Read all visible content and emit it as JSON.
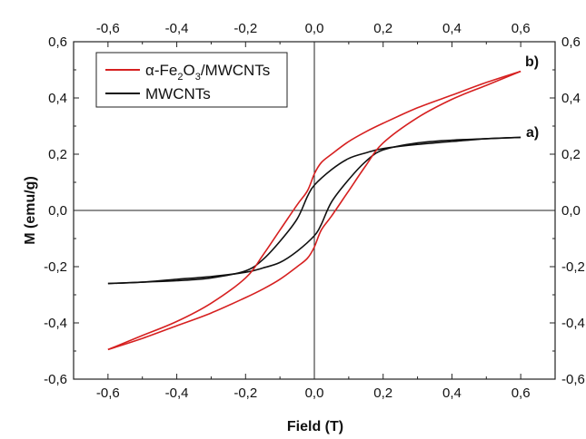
{
  "chart_data": {
    "type": "line",
    "xlabel": "Field (T)",
    "ylabel": "M (emu/g)",
    "xlim": [
      -0.7,
      0.7
    ],
    "ylim": [
      -0.6,
      0.6
    ],
    "x_ticks": [
      -0.6,
      -0.4,
      -0.2,
      0.0,
      0.2,
      0.4,
      0.6
    ],
    "y_ticks": [
      -0.6,
      -0.4,
      -0.2,
      0.0,
      0.2,
      0.4,
      0.6
    ],
    "x_tick_labels": [
      "-0,6",
      "-0,4",
      "-0,2",
      "0,0",
      "0,2",
      "0,4",
      "0,6"
    ],
    "y_tick_labels": [
      "-0,6",
      "-0,4",
      "-0,2",
      "0,0",
      "0,2",
      "0,4",
      "0,6"
    ],
    "ticks_on_all_sides": true,
    "zero_lines": true,
    "grid": false,
    "legend_position": "top-left",
    "series": [
      {
        "name": "α-Fe2O3/MWCNTs",
        "legend_parts": {
          "pre": "α-Fe",
          "sub1": "2",
          "mid": "O",
          "sub2": "3",
          "post": "/MWCNTs"
        },
        "color": "#d62020",
        "curve_label": "b)",
        "branch_descending": {
          "x": [
            0.6,
            0.5,
            0.4,
            0.3,
            0.2,
            0.15,
            0.1,
            0.05,
            0.02,
            0.0,
            -0.02,
            -0.05,
            -0.1,
            -0.15,
            -0.2,
            -0.3,
            -0.4,
            -0.5,
            -0.6
          ],
          "y": [
            0.495,
            0.455,
            0.41,
            0.365,
            0.31,
            0.28,
            0.245,
            0.2,
            0.17,
            0.13,
            0.07,
            0.02,
            -0.07,
            -0.16,
            -0.24,
            -0.33,
            -0.395,
            -0.445,
            -0.495
          ]
        },
        "branch_ascending": {
          "x": [
            -0.6,
            -0.5,
            -0.4,
            -0.3,
            -0.2,
            -0.15,
            -0.1,
            -0.05,
            -0.02,
            0.0,
            0.02,
            0.05,
            0.1,
            0.15,
            0.2,
            0.3,
            0.4,
            0.5,
            0.6
          ],
          "y": [
            -0.495,
            -0.455,
            -0.41,
            -0.365,
            -0.31,
            -0.28,
            -0.245,
            -0.2,
            -0.17,
            -0.13,
            -0.07,
            -0.02,
            0.07,
            0.16,
            0.24,
            0.33,
            0.395,
            0.445,
            0.495
          ]
        }
      },
      {
        "name": "MWCNTs",
        "color": "#111111",
        "curve_label": "a)",
        "branch_descending": {
          "x": [
            0.6,
            0.5,
            0.4,
            0.3,
            0.2,
            0.15,
            0.1,
            0.05,
            0.0,
            -0.02,
            -0.05,
            -0.1,
            -0.15,
            -0.2,
            -0.3,
            -0.4,
            -0.5,
            -0.6
          ],
          "y": [
            0.26,
            0.255,
            0.245,
            0.235,
            0.22,
            0.205,
            0.185,
            0.145,
            0.09,
            0.05,
            -0.03,
            -0.11,
            -0.175,
            -0.215,
            -0.24,
            -0.25,
            -0.255,
            -0.26
          ]
        },
        "branch_ascending": {
          "x": [
            -0.6,
            -0.5,
            -0.4,
            -0.3,
            -0.2,
            -0.15,
            -0.1,
            -0.05,
            0.0,
            0.02,
            0.05,
            0.1,
            0.15,
            0.2,
            0.3,
            0.4,
            0.5,
            0.6
          ],
          "y": [
            -0.26,
            -0.255,
            -0.245,
            -0.235,
            -0.22,
            -0.205,
            -0.185,
            -0.145,
            -0.09,
            -0.05,
            0.03,
            0.11,
            0.175,
            0.215,
            0.24,
            0.25,
            0.255,
            0.26
          ]
        }
      }
    ]
  }
}
